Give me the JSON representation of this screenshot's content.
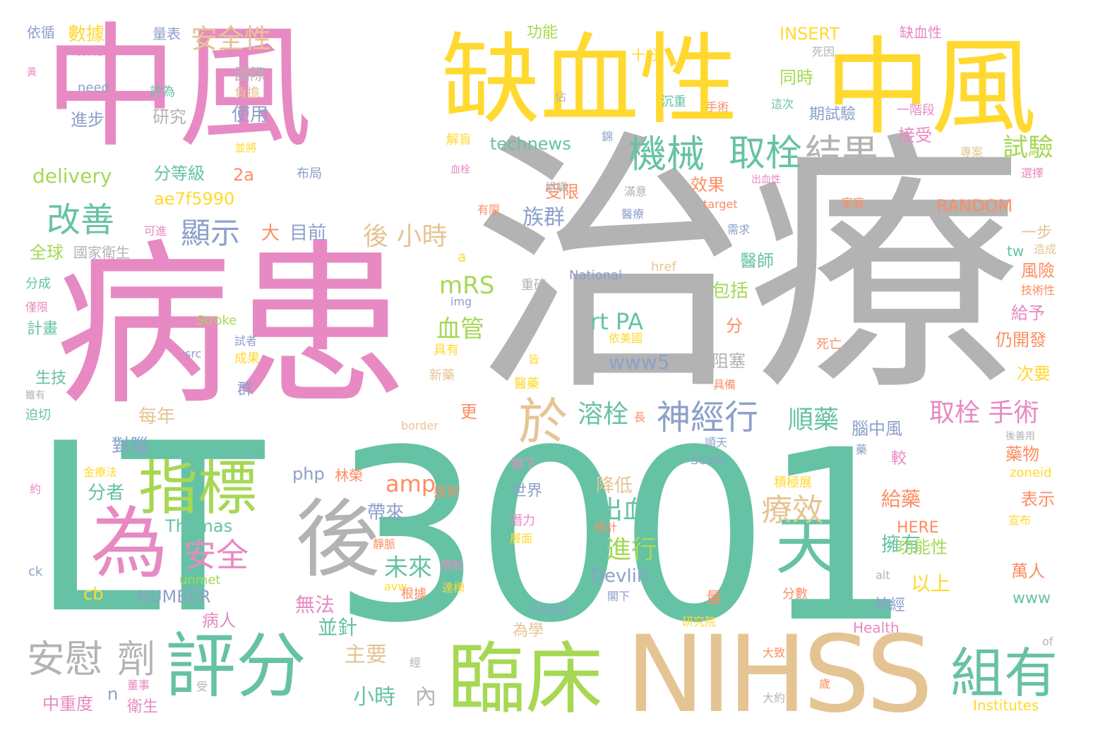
{
  "colors": {
    "pink": "#e78ac3",
    "teal": "#66c2a5",
    "yellow": "#ffd92f",
    "gray": "#b3b3b3",
    "tan": "#e5c494",
    "lime": "#a6d854",
    "orange": "#fc8d62",
    "blue": "#8da0cb",
    "background": "#ffffff"
  },
  "words": {
    "w001": "中風",
    "w002": "病患",
    "w003": "治療",
    "w004": "LT",
    "w005": "3001",
    "w006": "缺血性",
    "w007": "中風",
    "w008": "NIHSS",
    "w009": "評分",
    "w010": "臨床",
    "w011": "為",
    "w012": "後",
    "w013": "指標",
    "w014": "組有",
    "w015": "天",
    "w016": "機械",
    "w017": "取栓",
    "w018": "結果",
    "w019": "試驗",
    "w020": "改善",
    "w021": "顯示",
    "w022": "於",
    "w023": "神經行",
    "w024": "安慰",
    "w025": "劑",
    "w026": "療效",
    "w027": "安全",
    "w028": "出血",
    "w029": "進行",
    "w030": "安全性",
    "w031": "後 小時",
    "w032": "取栓 手術",
    "w033": "溶栓",
    "w034": "順藥",
    "w035": "未來",
    "w036": "血管",
    "w037": "mRS",
    "w038": "rt PA",
    "w039": "www5",
    "w040": "Devlin",
    "w041": "amp",
    "w042": "對腦",
    "w043": "分者",
    "w044": "無法",
    "w045": "主要",
    "w046": "小時",
    "w047": "內",
    "w048": "並針",
    "w049": "病人",
    "w050": "中重度",
    "w051": "n",
    "w052": "衛生",
    "w053": "cb",
    "w054": "NUMBER",
    "w055": "Thomas",
    "w056": "帶來",
    "w057": "降低",
    "w058": "php",
    "w059": "林榮",
    "w060": "世界",
    "w061": "每年",
    "w062": "更",
    "w063": "阻塞",
    "w064": "分",
    "w065": "包括",
    "w066": "醫師",
    "w067": "族群",
    "w068": "效果",
    "w069": "受限",
    "w070": "technews",
    "w071": "接受",
    "w072": "期試驗",
    "w073": "同時",
    "w074": "INSERT",
    "w075": "RANDOM",
    "w076": "一步",
    "w077": "tw",
    "w078": "風險",
    "w079": "給予",
    "w080": "仍開發",
    "w081": "次要",
    "w082": "藥物",
    "w083": "表示",
    "w084": "萬人",
    "w085": "www",
    "w086": "以上",
    "w087": "擁有",
    "w088": "給藥",
    "w089": "功能性",
    "w090": "HERE",
    "w091": "神經",
    "w092": "腦中風",
    "w093": "較",
    "w094": "量",
    "w095": "Health",
    "w096": "Institutes",
    "w097": "大約",
    "w098": "大致",
    "w099": "分數",
    "w100": "研究院",
    "w101": "為學",
    "w102": "delivery",
    "w103": "進步",
    "w104": "研究",
    "w105": "使用",
    "w106": "國際",
    "w107": "數據",
    "w108": "依循",
    "w109": "量表",
    "w110": "WHO",
    "w111": "need",
    "w112": "評為",
    "w113": "功能",
    "w114": "十分",
    "w115": "缺血性",
    "w116": "分等級",
    "w117": "2a",
    "w118": "ae7f5990",
    "w119": "目前",
    "w120": "大",
    "w121": "全球",
    "w122": "國家衛生",
    "w123": "計畫",
    "w124": "生技",
    "w125": "群",
    "w126": "Stroke",
    "w127": "National",
    "w128": "img",
    "w129": "a",
    "w130": "重磅",
    "w131": "href",
    "w132": "Scale",
    "w133": "border",
    "w134": "ck",
    "w135": "unmet",
    "w136": "avw",
    "w137": "blank",
    "w138": "alt",
    "w139": "zoneid",
    "w140": "target",
    "w141": "of",
    "w142": "src",
    "w143": "死因",
    "w144": "死亡",
    "w145": "皆",
    "w146": "醫藥",
    "w147": "新藥",
    "w148": "具有",
    "w149": "成果",
    "w150": "具備",
    "w151": "長",
    "w152": "順天",
    "w153": "藥",
    "w154": "旗下",
    "w155": "潛力",
    "w156": "統計",
    "w157": "層面",
    "w158": "限制",
    "w159": "達標",
    "w160": "根據",
    "w161": "積極展",
    "w162": "宣布",
    "w163": "後善用",
    "w164": "閣下",
    "w165": "歲",
    "w166": "受",
    "w167": "董事",
    "w168": "經",
    "w169": "約",
    "w170": "金療法",
    "w171": "感到",
    "w172": "靜脈",
    "w173": "造成",
    "w174": "技術性",
    "w175": "選擇",
    "w176": "家庭",
    "w177": "專案",
    "w178": "出血性",
    "w179": "滿意",
    "w180": "醫療",
    "w181": "需求",
    "w182": "有限",
    "w183": "組織",
    "w184": "布局",
    "w185": "可進",
    "w186": "血栓",
    "w187": "解盲",
    "w188": "錦",
    "w189": "佔",
    "w190": "沉重",
    "w191": "手術",
    "w192": "這次",
    "w193": "一階段",
    "w194": "負擔",
    "w195": "並將",
    "w196": "依美國",
    "w197": "試者",
    "w198": "僅限",
    "w199": "分成",
    "w200": "迫切",
    "w201": "雖有",
    "w202": "黃"
  }
}
